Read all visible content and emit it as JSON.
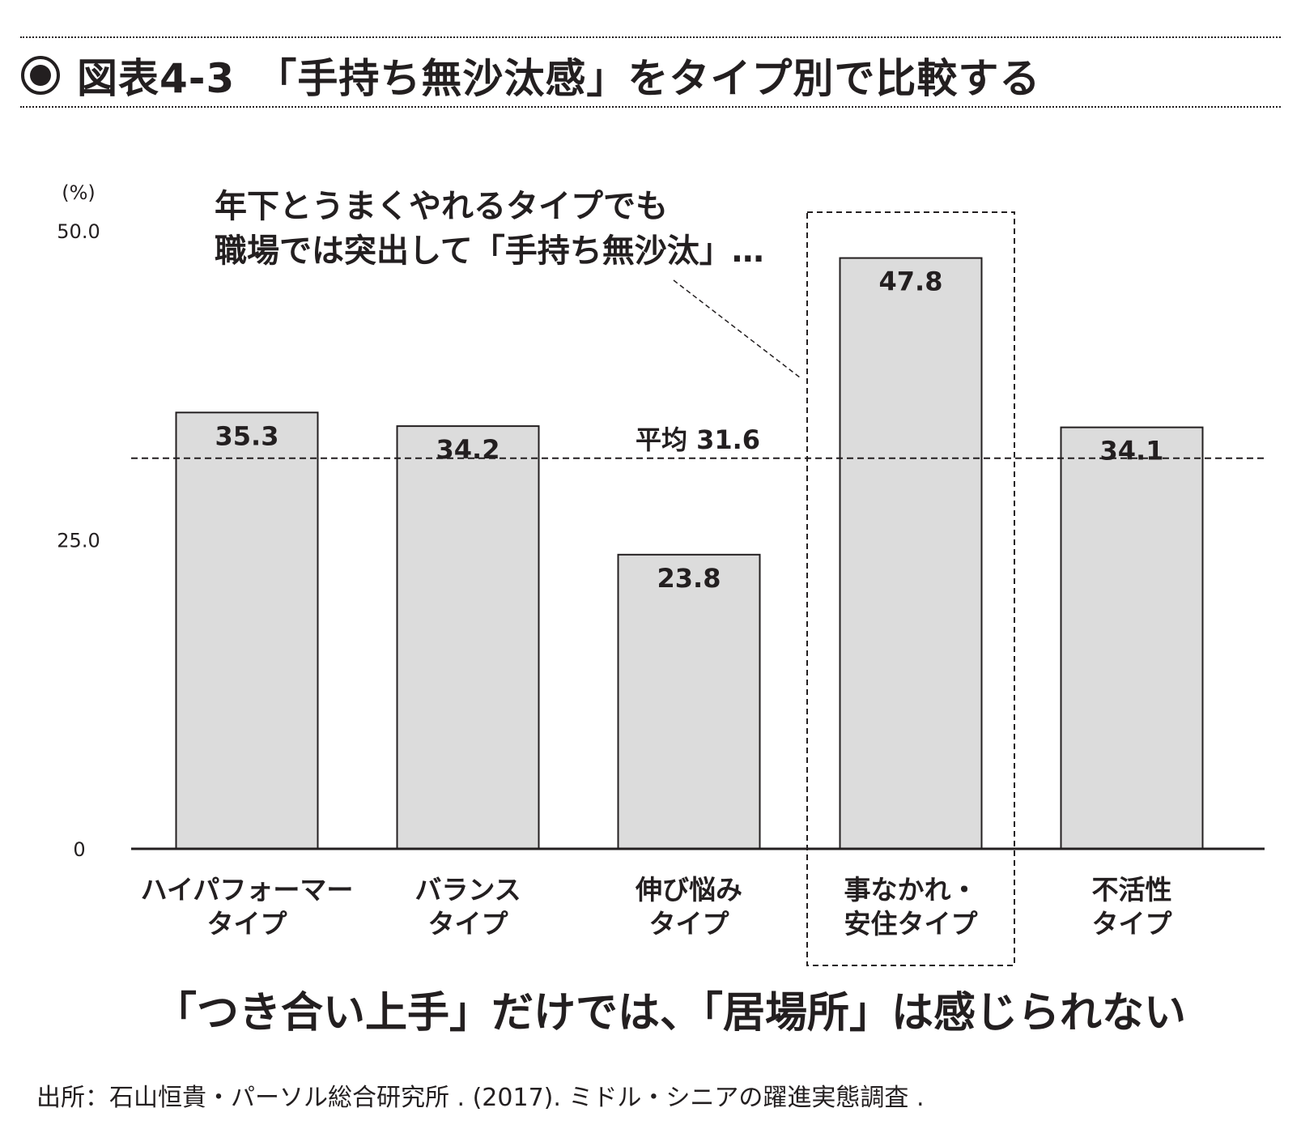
{
  "header": {
    "bullet_icon": "radio-bullet-icon",
    "title": "図表4-3　「手持ち無沙汰感」をタイプ別で比較する"
  },
  "chart_data": {
    "type": "bar",
    "unit_label": "(%)",
    "y_ticks": [
      "50.0",
      "25.0",
      "0"
    ],
    "ylim": [
      0,
      50
    ],
    "categories": [
      [
        "ハイパフォーマー",
        "タイプ"
      ],
      [
        "バランス",
        "タイプ"
      ],
      [
        "伸び悩み",
        "タイプ"
      ],
      [
        "事なかれ・",
        "安住タイプ"
      ],
      [
        "不活性",
        "タイプ"
      ]
    ],
    "values": [
      35.3,
      34.2,
      23.8,
      47.8,
      34.1
    ],
    "value_labels": [
      "35.3",
      "34.2",
      "23.8",
      "47.8",
      "34.1"
    ],
    "average": {
      "value": 31.6,
      "label": "平均 31.6"
    },
    "highlight_index": 3,
    "callout": [
      "年下とうまくやれるタイプでも",
      "職場では突出して「手持ち無沙汰」…"
    ],
    "conclusion": "「つき合い上手」だけでは、「居場所」は感じられない",
    "colors": {
      "bar_fill": "#dcdcdc",
      "ink": "#231f20"
    }
  },
  "source": "出所：石山恒貴・パーソル総合研究所 . (2017). ミドル・シニアの躍進実態調査 ."
}
